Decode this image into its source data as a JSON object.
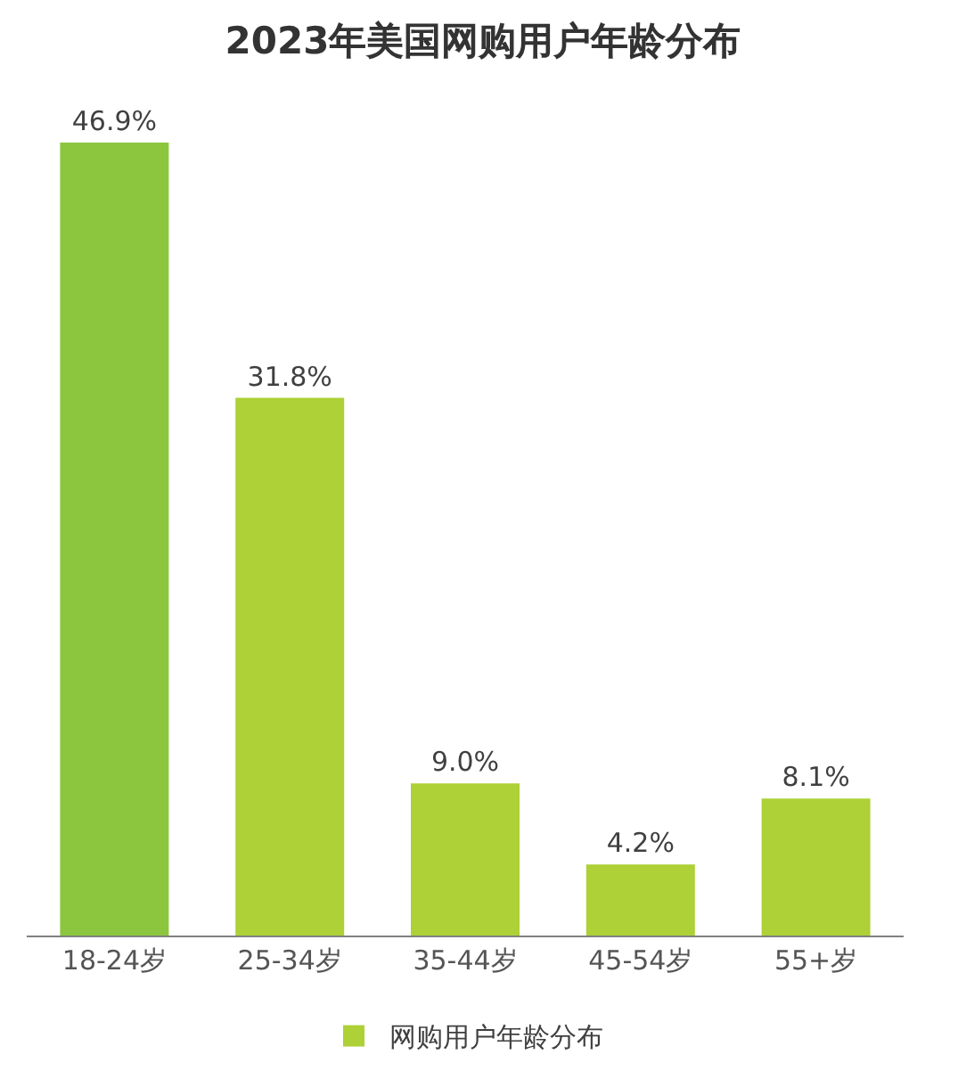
{
  "chart_data": {
    "type": "bar",
    "title": "2023年美国网购用户年龄分布",
    "categories": [
      "18-24岁",
      "25-34岁",
      "35-44岁",
      "45-54岁",
      "55+岁"
    ],
    "series": [
      {
        "name": "网购用户年龄分布",
        "color": "#add136",
        "colors": [
          "#8cc63e",
          "#add136",
          "#add136",
          "#add136",
          "#add136"
        ],
        "values": [
          46.9,
          31.8,
          9.0,
          4.2,
          8.1
        ],
        "value_labels": [
          "46.9%",
          "31.8%",
          "9.0%",
          "4.2%",
          "8.1%"
        ]
      }
    ],
    "legend": "bottom"
  }
}
